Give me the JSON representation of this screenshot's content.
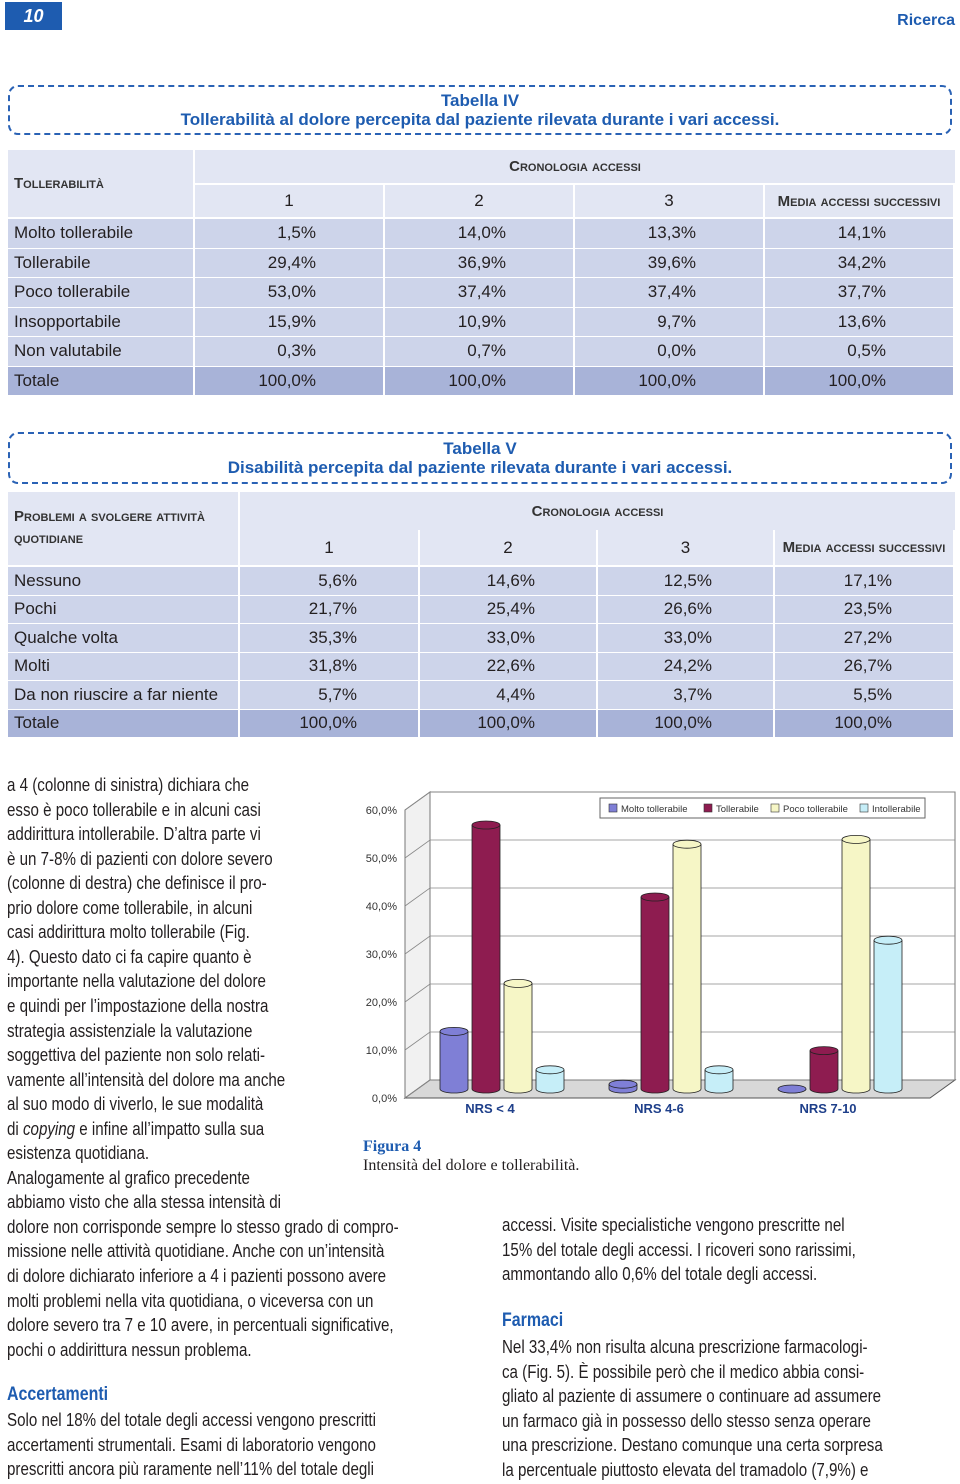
{
  "header": {
    "page_number": "10",
    "section": "Ricerca"
  },
  "table4": {
    "label": "Tabella IV",
    "title": "Tollerabilità al dolore percepita dal paziente rilevata durante i vari accessi.",
    "row_header": "Tollerabilità",
    "group_header": "Cronologia accessi",
    "columns": [
      "1",
      "2",
      "3",
      "Media accessi successivi"
    ],
    "rows": [
      [
        "Molto tollerabile",
        "1,5%",
        "14,0%",
        "13,3%",
        "14,1%"
      ],
      [
        "Tollerabile",
        "29,4%",
        "36,9%",
        "39,6%",
        "34,2%"
      ],
      [
        "Poco tollerabile",
        "53,0%",
        "37,4%",
        "37,4%",
        "37,7%"
      ],
      [
        "Insopportabile",
        "15,9%",
        "10,9%",
        "9,7%",
        "13,6%"
      ],
      [
        "Non valutabile",
        "0,3%",
        "0,7%",
        "0,0%",
        "0,5%"
      ],
      [
        "Totale",
        "100,0%",
        "100,0%",
        "100,0%",
        "100,0%"
      ]
    ]
  },
  "table5": {
    "label": "Tabella V",
    "title": "Disabilità percepita dal paziente rilevata durante i vari accessi.",
    "row_header": "Problemi a svolgere attività quotidiane",
    "group_header": "Cronologia accessi",
    "columns": [
      "1",
      "2",
      "3",
      "Media accessi successivi"
    ],
    "rows": [
      [
        "Nessuno",
        "5,6%",
        "14,6%",
        "12,5%",
        "17,1%"
      ],
      [
        "Pochi",
        "21,7%",
        "25,4%",
        "26,6%",
        "23,5%"
      ],
      [
        "Qualche volta",
        "35,3%",
        "33,0%",
        "33,0%",
        "27,2%"
      ],
      [
        "Molti",
        "31,8%",
        "22,6%",
        "24,2%",
        "26,7%"
      ],
      [
        "Da non riuscire a far niente",
        "5,7%",
        "4,4%",
        "3,7%",
        "5,5%"
      ],
      [
        "Totale",
        "100,0%",
        "100,0%",
        "100,0%",
        "100,0%"
      ]
    ]
  },
  "figure": {
    "label": "Figura 4",
    "caption": "Intensità del dolore e tollerabilità.",
    "chart_data": {
      "type": "bar",
      "categories": [
        "NRS < 4",
        "NRS 4-6",
        "NRS 7-10"
      ],
      "series": [
        {
          "name": "Molto tollerabile",
          "color": "#7f7fd6",
          "values": [
            12,
            1,
            0
          ]
        },
        {
          "name": "Tollerabile",
          "color": "#8e1c50",
          "values": [
            55,
            40,
            8
          ]
        },
        {
          "name": "Poco tollerabile",
          "color": "#f6f6c6",
          "values": [
            22,
            51,
            52
          ]
        },
        {
          "name": "Intollerabile",
          "color": "#c6eef8",
          "values": [
            4,
            4,
            31
          ]
        }
      ],
      "ylim": [
        0,
        60
      ],
      "yticks": [
        {
          "value": 0,
          "label": "0,0%"
        },
        {
          "value": 10,
          "label": "10,0%"
        },
        {
          "value": 20,
          "label": "20,0%"
        },
        {
          "value": 30,
          "label": "30,0%"
        },
        {
          "value": 40,
          "label": "40,0%"
        },
        {
          "value": 50,
          "label": "50,0%"
        },
        {
          "value": 60,
          "label": "60,0%"
        }
      ],
      "grid": true
    }
  },
  "left_text": [
    "a 4 (colonne di sinistra) dichiara che",
    "esso è poco tollerabile e in alcuni casi",
    "addirittura intollerabile. D’altra parte vi",
    "è un 7-8% di pazienti con dolore severo",
    "(colonne di destra) che definisce il pro-",
    "prio dolore come tollerabile, in alcuni",
    "casi addirittura molto tollerabile (Fig.",
    "4). Questo dato ci fa capire quanto è",
    "importante nella valutazione del dolore",
    "e quindi per l’impostazione della nostra",
    "strategia assistenziale la valutazione",
    "soggettiva del paziente non solo relati-",
    "vamente all’intensità del dolore ma anche",
    "al suo modo di viverlo, le sue modalità",
    [
      "di ",
      "copying",
      " e infine all’impatto sulla sua"
    ],
    "esistenza quotidiana.",
    "Analogamente al grafico precedente",
    "abbiamo visto che alla stessa intensità di",
    "dolore non corrisponde sempre lo stesso grado di compro-",
    "missione nelle attività quotidiane. Anche con un’intensità",
    "di dolore dichiarato inferiore a 4 i pazienti possono avere",
    "molti problemi nella vita quotidiana, o viceversa con un",
    "dolore severo tra 7 e 10 avere, in percentuali significative,",
    "pochi o addirittura nessun problema."
  ],
  "accertamenti": {
    "heading": "Accertamenti",
    "lines": [
      "Solo nel 18% del totale degli accessi vengono prescritti",
      "accertamenti strumentali. Esami di laboratorio vengono",
      "prescritti ancora più raramente nell’11% del totale degli"
    ]
  },
  "right_text": [
    "accessi. Visite specialistiche vengono prescritte nel",
    "15% del totale degli accessi. I ricoveri sono rarissimi,",
    "ammontando allo 0,6% del totale degli accessi."
  ],
  "farmaci": {
    "heading": "Farmaci",
    "lines": [
      "Nel 33,4% non risulta alcuna prescrizione farmacologi-",
      "ca (Fig. 5). È possibile però che il medico abbia consi-",
      "gliato al paziente di assumere o continuare ad assumere",
      "un farmaco già in possesso dello stesso senza operare",
      "una prescrizione. Destano comunque una certa sorpresa",
      "la percentuale piuttosto elevata del tramadolo (7,9%) e"
    ]
  }
}
